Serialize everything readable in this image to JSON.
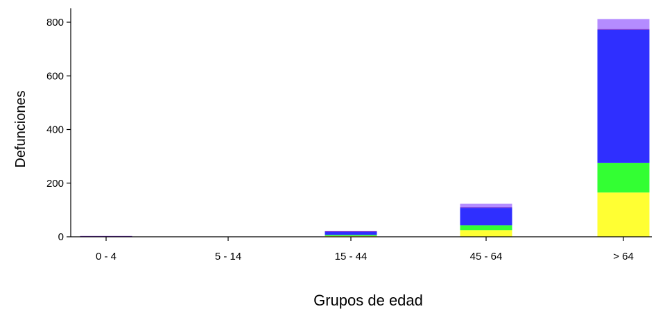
{
  "chart_data": {
    "type": "bar",
    "stacked": true,
    "title": "",
    "xlabel": "Grupos de edad",
    "ylabel": "Defunciones",
    "categories": [
      "0 - 4",
      "5 - 14",
      "15 - 44",
      "45 - 64",
      "> 64"
    ],
    "ylim": [
      0,
      850
    ],
    "yticks": [
      0,
      200,
      400,
      600,
      800
    ],
    "grid": false,
    "legend": "none",
    "series": [
      {
        "color": "#ffff33",
        "values": [
          0,
          0,
          3,
          25,
          165
        ]
      },
      {
        "color": "#33ff33",
        "values": [
          0,
          0,
          4,
          18,
          110
        ]
      },
      {
        "color": "#2f2fff",
        "values": [
          0,
          0,
          13,
          65,
          497
        ]
      },
      {
        "color": "#7a2fd0",
        "values": [
          3,
          0,
          1,
          3,
          3
        ]
      },
      {
        "color": "#b48cff",
        "values": [
          0,
          0,
          0,
          12,
          37
        ]
      }
    ]
  }
}
